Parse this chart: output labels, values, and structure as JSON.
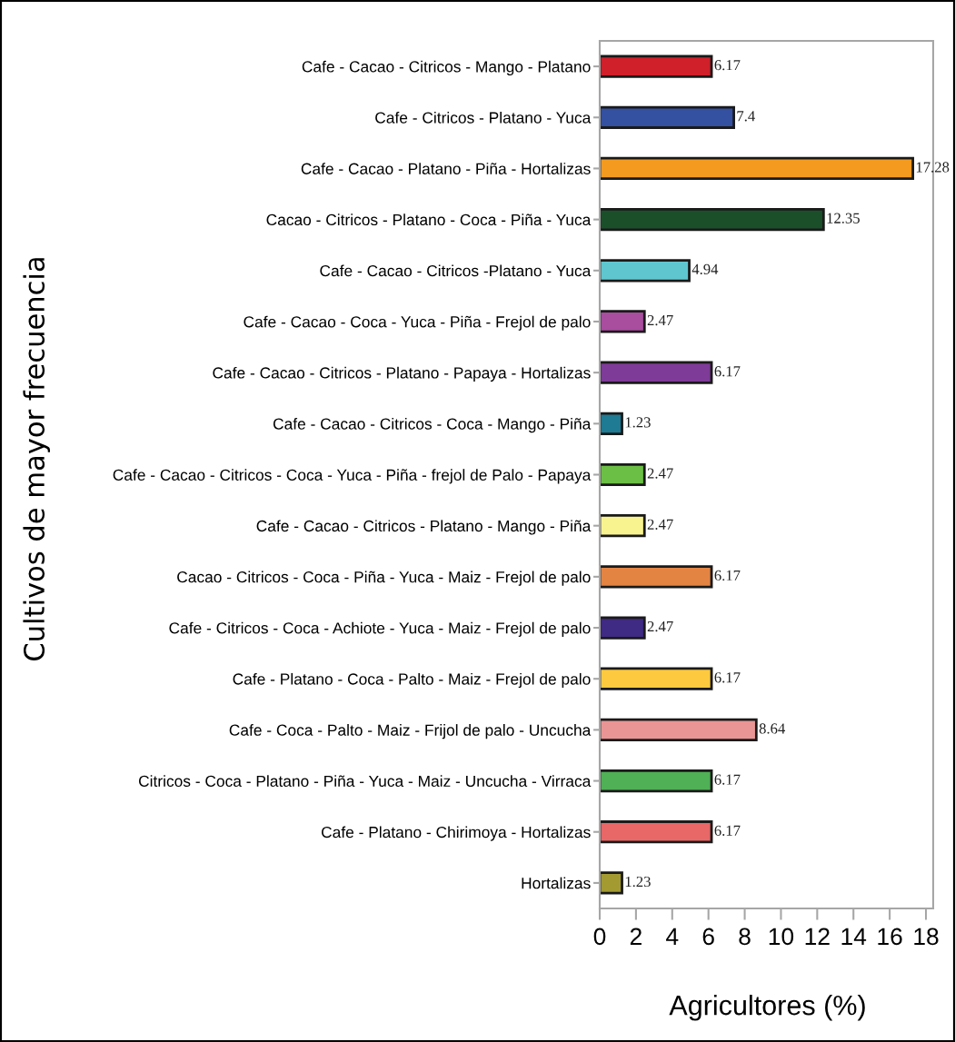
{
  "chart_data": {
    "type": "bar",
    "orientation": "horizontal",
    "categories": [
      "Cafe - Cacao - Citricos - Mango - Platano",
      "Cafe - Citricos - Platano - Yuca",
      "Cafe - Cacao - Platano - Piña - Hortalizas",
      "Cacao - Citricos - Platano - Coca - Piña - Yuca",
      "Cafe - Cacao - Citricos -Platano - Yuca",
      "Cafe - Cacao - Coca - Yuca - Piña - Frejol de palo",
      "Cafe - Cacao - Citricos - Platano - Papaya - Hortalizas",
      "Cafe - Cacao - Citricos - Coca - Mango - Piña",
      "Cafe - Cacao - Citricos - Coca - Yuca - Piña - frejol de Palo - Papaya",
      "Cafe - Cacao - Citricos - Platano - Mango - Piña",
      "Cacao - Citricos - Coca - Piña - Yuca - Maiz - Frejol de palo",
      "Cafe - Citricos - Coca - Achiote - Yuca - Maiz - Frejol de palo",
      "Cafe - Platano - Coca - Palto - Maiz - Frejol de palo",
      "Cafe - Coca - Palto - Maiz - Frijol de palo - Uncucha",
      "Citricos - Coca - Platano - Piña - Yuca - Maiz - Uncucha - Virraca",
      "Cafe - Platano - Chirimoya - Hortalizas",
      "Hortalizas"
    ],
    "values": [
      6.17,
      7.4,
      17.28,
      12.35,
      4.94,
      2.47,
      6.17,
      1.23,
      2.47,
      2.47,
      6.17,
      2.47,
      6.17,
      8.64,
      6.17,
      6.17,
      1.23
    ],
    "colors": [
      "#d0202a",
      "#3450a0",
      "#f39a1f",
      "#1b4f2a",
      "#5fc6d0",
      "#a94d9f",
      "#7e3b98",
      "#1f7a93",
      "#6bbf45",
      "#f8f38f",
      "#e38443",
      "#3f2a84",
      "#fdca3f",
      "#ea9595",
      "#4fb056",
      "#e86767",
      "#a39a32"
    ],
    "xlabel": "Agricultores (%)",
    "ylabel": "Cultivos de mayor frecuencia",
    "xlim": [
      0,
      18.4
    ],
    "xticks": [
      0,
      2,
      4,
      6,
      8,
      10,
      12,
      14,
      16,
      18
    ],
    "data_labels": true
  }
}
